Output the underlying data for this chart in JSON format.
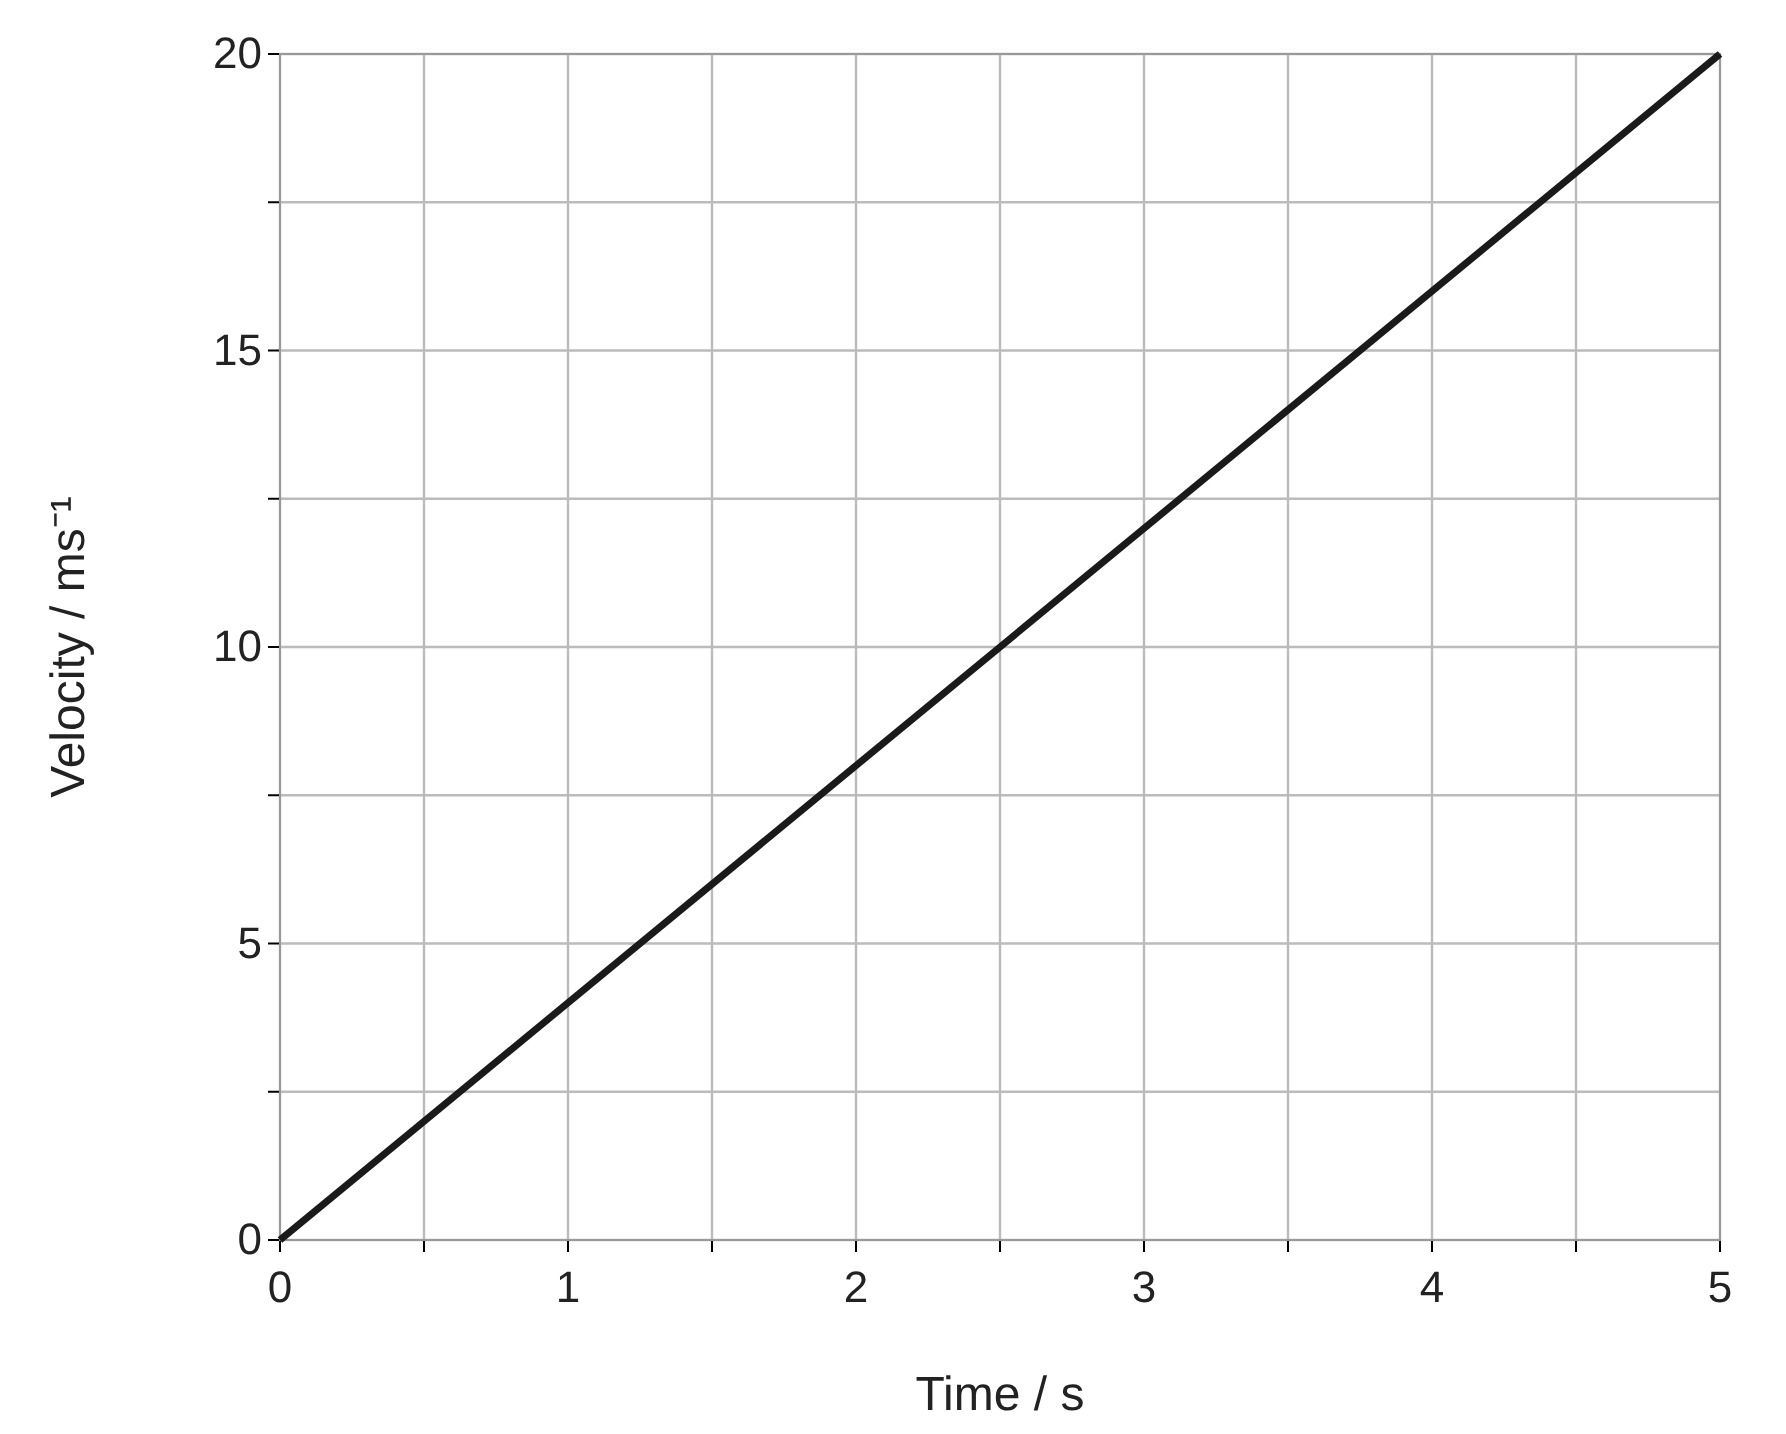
{
  "chart_data": {
    "type": "line",
    "xlabel": "Time / s",
    "ylabel": "Velocity / ms⁻¹",
    "x": [
      0,
      5
    ],
    "series": [
      {
        "color": "#1a1a1a",
        "values": [
          0,
          20
        ]
      }
    ],
    "xlim": [
      0,
      5
    ],
    "ylim": [
      0,
      20
    ],
    "xticks": [
      0,
      {
        "value": 0.5,
        "label": null
      },
      1,
      {
        "value": 1.5,
        "label": null
      },
      2,
      {
        "value": 2.5,
        "label": null
      },
      3,
      {
        "value": 3.5,
        "label": null
      },
      4,
      {
        "value": 4.5,
        "label": null
      },
      5
    ],
    "yticks": [
      0,
      {
        "value": 2.5,
        "label": null
      },
      5,
      {
        "value": 7.5,
        "label": null
      },
      10,
      {
        "value": 12.5,
        "label": null
      },
      15,
      {
        "value": 17.5,
        "label": null
      },
      20
    ],
    "grid": true,
    "marker": "none",
    "line_style": "solid"
  }
}
